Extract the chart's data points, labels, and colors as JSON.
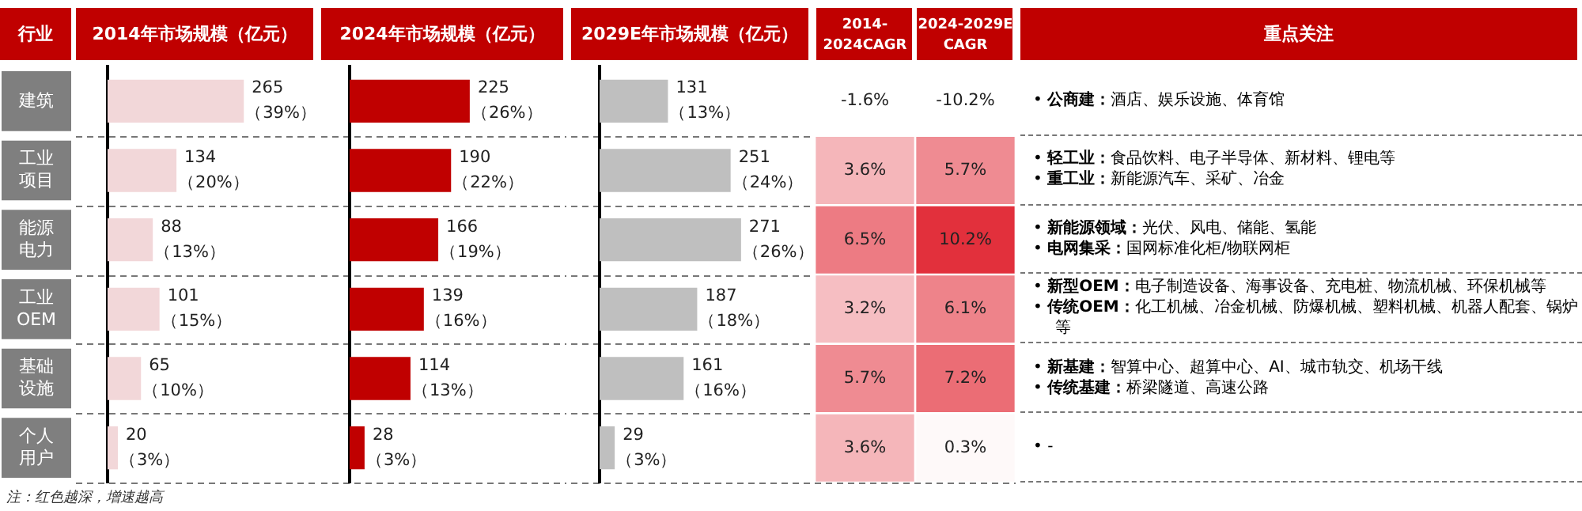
{
  "chart_data": [
    {
      "type": "bar",
      "orientation": "horizontal",
      "title": "2014年市场规模（亿元）",
      "ylabel": "行业",
      "tick_labels": "y",
      "categories": [
        "建筑",
        "工业项目",
        "能源电力",
        "工业OEM",
        "基础设施",
        "个人用户"
      ],
      "color": "#f2d7d9",
      "values": [
        265,
        134,
        88,
        101,
        65,
        20
      ],
      "value_labels": [
        "265\n（39%）",
        "134\n（20%）",
        "88\n（13%）",
        "101\n（15%）",
        "65\n（10%）",
        "20\n（3%）"
      ]
    },
    {
      "type": "bar",
      "orientation": "horizontal",
      "title": "2024年市场规模（亿元）",
      "tick_labels": false,
      "categories": [
        "建筑",
        "工业项目",
        "能源电力",
        "工业OEM",
        "基础设施",
        "个人用户"
      ],
      "color": "#c00000",
      "values": [
        225,
        190,
        166,
        139,
        114,
        28
      ],
      "value_labels": [
        "225\n（26%）",
        "190\n（22%）",
        "166\n（19%）",
        "139\n（16%）",
        "114\n（13%）",
        "28\n（3%）"
      ]
    },
    {
      "type": "bar",
      "orientation": "horizontal",
      "title": "2029E年市场规模（亿元）",
      "tick_labels": false,
      "categories": [
        "建筑",
        "工业项目",
        "能源电力",
        "工业OEM",
        "基础设施",
        "个人用户"
      ],
      "color": "#bfbfbf",
      "values": [
        131,
        251,
        271,
        187,
        161,
        29
      ],
      "value_labels": [
        "131\n（13%）",
        "251\n（24%）",
        "271\n（26%）",
        "187\n（18%）",
        "161\n（16%）",
        "29\n（3%）"
      ]
    },
    {
      "type": "heatmap",
      "categories": [
        "2014-2024CAGR",
        "2024-2029E CAGR"
      ],
      "y_categories": [
        null,
        null,
        null,
        null,
        null,
        null
      ],
      "tick_labels": "x",
      "cells": [
        [
          -1.6,
          -10.2
        ],
        [
          3.6,
          5.7
        ],
        [
          6.5,
          10.2
        ],
        [
          3.2,
          6.1
        ],
        [
          5.7,
          7.2
        ],
        [
          3.6,
          0.3
        ]
      ],
      "cell_labels": [
        [
          "-1.6%",
          "-10.2%"
        ],
        [
          "3.6%",
          "5.7%"
        ],
        [
          "6.5%",
          "10.2%"
        ],
        [
          "3.2%",
          "6.1%"
        ],
        [
          "5.7%",
          "7.2%"
        ],
        [
          "3.6%",
          "0.3%"
        ]
      ],
      "annotations": [
        "注：红色越深，增速越高"
      ]
    },
    {
      "type": "other",
      "title": "重点关注",
      "annotations": [
        {
          "text": "•  公商建：酒店、娱乐设施、体育馆",
          "y": "建筑"
        },
        {
          "text": "•  轻工业：食品饮料、电子半导体、新材料、锂电等",
          "y": "工业项目"
        },
        {
          "text": "•  重工业：新能源汽车、采矿、冶金",
          "y": "工业项目"
        },
        {
          "text": "•  新能源领域：光伏、风电、储能、氢能",
          "y": "能源电力"
        },
        {
          "text": "•  电网集采：国网标准化柜/物联网柜",
          "y": "能源电力"
        },
        {
          "text": "•  新型OEM：电子制造设备、海事设备、充电桩、物流机械、环保机械等",
          "y": "工业OEM"
        },
        {
          "text": "•  传统OEM：化工机械、冶金机械、防爆机械、塑料机械、机器人配套、锅炉等",
          "y": "工业OEM"
        },
        {
          "text": "•  新基建：智算中心、超算中心、AI、城市轨交、机场干线",
          "y": "基础设施"
        },
        {
          "text": "•  传统基建：桥梁隧道、高速公路",
          "y": "基础设施"
        },
        {
          "text": "•  -",
          "y": "个人用户"
        }
      ]
    }
  ]
}
